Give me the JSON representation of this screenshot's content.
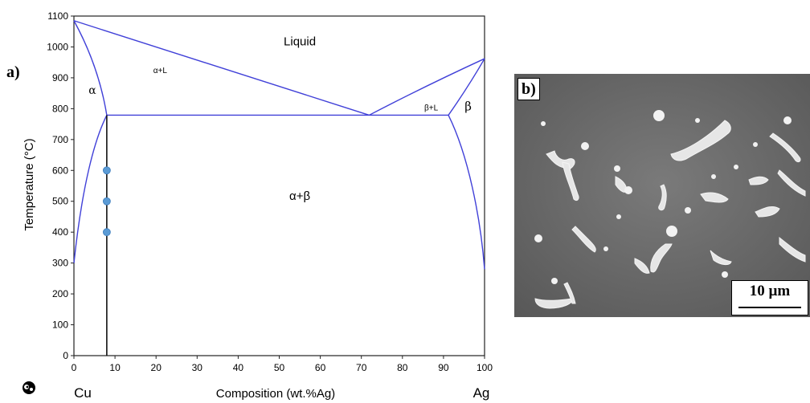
{
  "panel_a": {
    "label": "a)",
    "element_left": "Cu",
    "element_right": "Ag"
  },
  "panel_b": {
    "label": "b)",
    "scale_bar": "10 µm"
  },
  "chart_data": {
    "type": "line",
    "xlabel": "Composition (wt.%Ag)",
    "ylabel": "Temperature (°C)",
    "xlim": [
      0,
      100
    ],
    "ylim": [
      0,
      1100
    ],
    "x_ticks": [
      0,
      10,
      20,
      30,
      40,
      50,
      60,
      70,
      80,
      90,
      100
    ],
    "y_ticks": [
      0,
      100,
      200,
      300,
      400,
      500,
      600,
      700,
      800,
      900,
      1000,
      1100
    ],
    "grid": false,
    "line_color": "#4040d8",
    "series": [
      {
        "values": [
          [
            0,
            1085
          ],
          [
            71.9,
            779
          ]
        ]
      },
      {
        "values": [
          [
            0,
            1085
          ],
          [
            3.5,
            1000
          ],
          [
            6.5,
            900
          ],
          [
            8,
            779
          ]
        ]
      },
      {
        "values": [
          [
            71.9,
            779
          ],
          [
            85,
            870
          ],
          [
            100,
            962
          ]
        ]
      },
      {
        "values": [
          [
            100,
            962
          ],
          [
            96,
            870
          ],
          [
            91.2,
            779
          ]
        ]
      },
      {
        "values": [
          [
            8,
            779
          ],
          [
            8,
            779
          ],
          [
            91.2,
            779
          ]
        ]
      },
      {
        "values": [
          [
            0,
            300
          ],
          [
            2,
            550
          ],
          [
            5,
            700
          ],
          [
            8,
            779
          ]
        ]
      },
      {
        "values": [
          [
            91.2,
            779
          ],
          [
            96,
            650
          ],
          [
            99,
            450
          ],
          [
            100,
            280
          ]
        ]
      }
    ],
    "composition_line": {
      "x": 8,
      "y_from": 0,
      "y_to": 779
    },
    "points": [
      {
        "x": 8,
        "y": 600
      },
      {
        "x": 8,
        "y": 500
      },
      {
        "x": 8,
        "y": 400
      }
    ],
    "point_color": "#5b9bd5",
    "region_labels": {
      "liquid": "Liquid",
      "alpha_l": "α+L",
      "alpha": "α",
      "beta_l": "β+L",
      "beta": "β",
      "alpha_beta": "α+β"
    }
  }
}
